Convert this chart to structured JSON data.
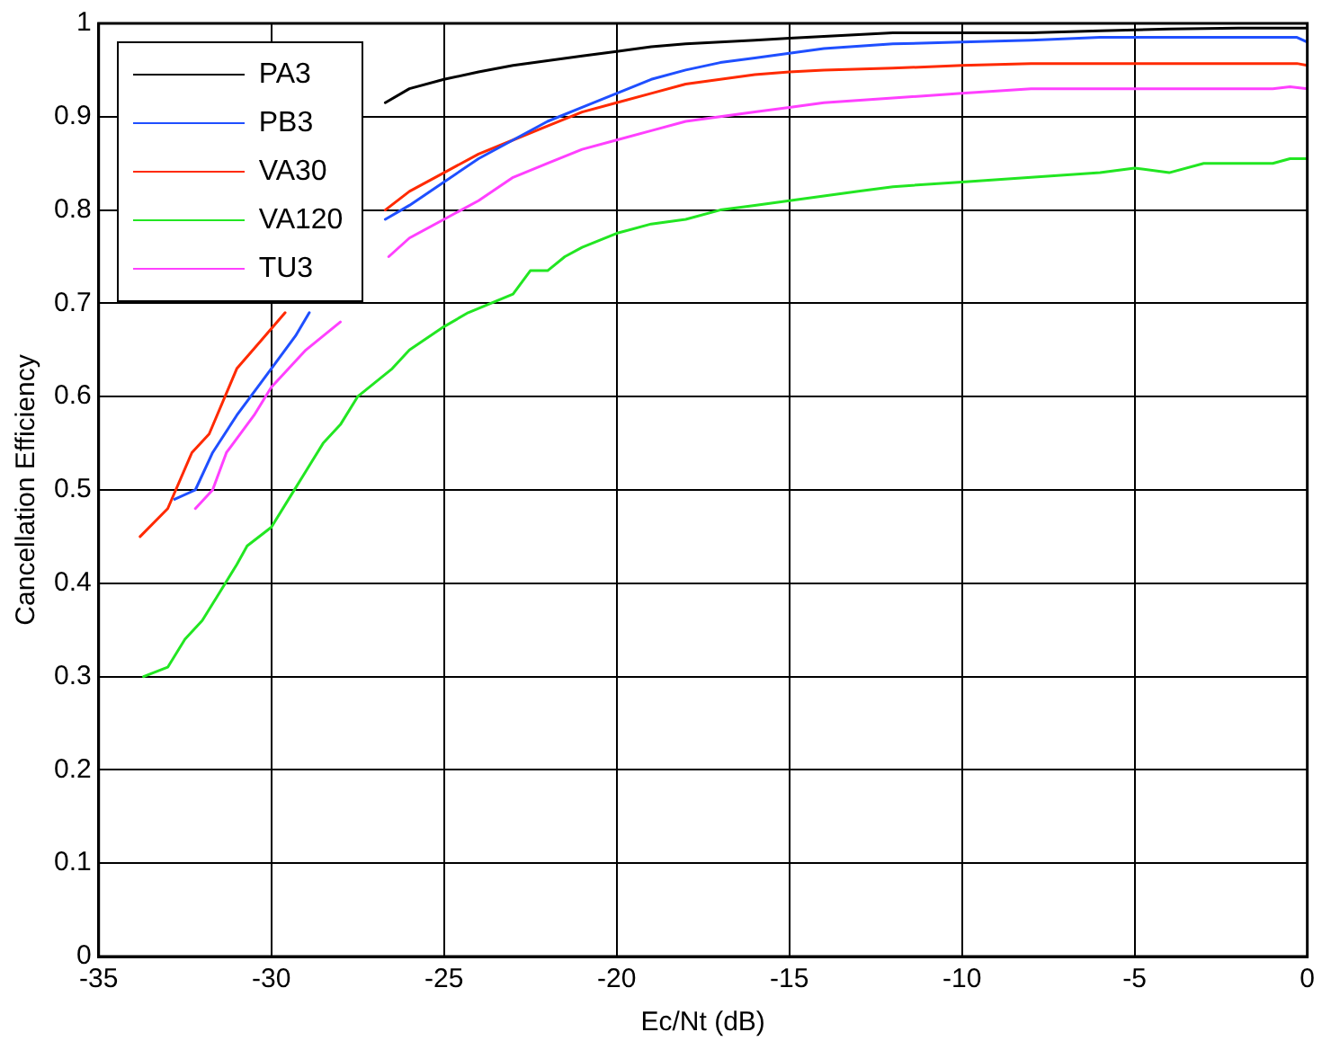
{
  "chart_data": {
    "type": "line",
    "xlabel": "Ec/Nt (dB)",
    "ylabel": "Cancellation Efficiency",
    "xlim": [
      -35,
      0
    ],
    "xticks": [
      -35,
      -30,
      -25,
      -20,
      -15,
      -10,
      -5,
      0
    ],
    "ylim": [
      0,
      1
    ],
    "yticks": [
      0,
      0.1,
      0.2,
      0.3,
      0.4,
      0.5,
      0.6,
      0.7,
      0.8,
      0.9,
      1
    ],
    "grid": true,
    "legend": "top left",
    "marker": "none",
    "line_style": "solid",
    "series": [
      {
        "name": "PA3",
        "color": "#000000",
        "x": [
          -26.7,
          -26,
          -25,
          -24,
          -23,
          -22,
          -21,
          -20,
          -19,
          -18,
          -17,
          -16,
          -15,
          -14,
          -13,
          -12,
          -10,
          -8,
          -6,
          -4,
          -2,
          -0.5,
          0
        ],
        "values": [
          0.915,
          0.93,
          0.94,
          0.948,
          0.955,
          0.96,
          0.965,
          0.97,
          0.975,
          0.978,
          0.98,
          0.982,
          0.984,
          0.986,
          0.988,
          0.99,
          0.99,
          0.99,
          0.992,
          0.994,
          0.995,
          0.995,
          0.995
        ]
      },
      {
        "name": "PB3",
        "color": "#1f4fff",
        "x": [
          -32.8,
          -32.2,
          -31.7,
          -31,
          -30,
          -29.3,
          -28.9,
          -28,
          -26.7,
          -26,
          -25,
          -24,
          -23,
          -22,
          -21,
          -20,
          -19,
          -18,
          -17,
          -16,
          -15,
          -14,
          -12,
          -10,
          -8,
          -6,
          -1,
          -0.3,
          0
        ],
        "values": [
          0.49,
          0.5,
          0.54,
          0.58,
          0.63,
          0.665,
          0.69,
          null,
          0.79,
          0.805,
          0.83,
          0.855,
          0.875,
          0.895,
          0.91,
          0.925,
          0.94,
          0.95,
          0.958,
          0.963,
          0.968,
          0.973,
          0.978,
          0.98,
          0.982,
          0.985,
          0.985,
          0.985,
          0.98
        ]
      },
      {
        "name": "VA30",
        "color": "#ff2a00",
        "x": [
          -33.8,
          -33,
          -32.3,
          -31.8,
          -31,
          -30.3,
          -29.6,
          -28,
          -26.7,
          -26,
          -25,
          -24,
          -23,
          -22,
          -21,
          -20,
          -19,
          -18,
          -17,
          -16,
          -15,
          -14,
          -12,
          -10,
          -8,
          -5,
          -0.3,
          0
        ],
        "values": [
          0.45,
          0.48,
          0.54,
          0.56,
          0.63,
          0.66,
          0.69,
          null,
          0.8,
          0.82,
          0.84,
          0.86,
          0.875,
          0.89,
          0.905,
          0.915,
          0.925,
          0.935,
          0.94,
          0.945,
          0.948,
          0.95,
          0.952,
          0.955,
          0.957,
          0.957,
          0.957,
          0.955
        ]
      },
      {
        "name": "VA120",
        "color": "#22e622",
        "x": [
          -33.7,
          -33,
          -32.5,
          -32,
          -31.5,
          -31,
          -30.7,
          -30,
          -29.5,
          -29,
          -28.5,
          -28,
          -27.5,
          -27,
          -26.5,
          -26,
          -25,
          -24.3,
          -23,
          -22.5,
          -22,
          -21.5,
          -21,
          -20,
          -19,
          -18,
          -17,
          -16,
          -15,
          -14,
          -13,
          -12,
          -10,
          -8,
          -6,
          -5,
          -4,
          -3,
          -1,
          -0.5,
          0
        ],
        "values": [
          0.3,
          0.31,
          0.34,
          0.36,
          0.39,
          0.42,
          0.44,
          0.46,
          0.49,
          0.52,
          0.55,
          0.57,
          0.6,
          0.615,
          0.63,
          0.65,
          0.675,
          0.69,
          0.71,
          0.735,
          0.735,
          0.75,
          0.76,
          0.775,
          0.785,
          0.79,
          0.8,
          0.805,
          0.81,
          0.815,
          0.82,
          0.825,
          0.83,
          0.835,
          0.84,
          0.845,
          0.84,
          0.85,
          0.85,
          0.855,
          0.855
        ]
      },
      {
        "name": "TU3",
        "color": "#ff40ff",
        "x": [
          -32.2,
          -31.7,
          -31.3,
          -30.5,
          -30,
          -29,
          -28,
          -27.5,
          -26.6,
          -26,
          -25,
          -24,
          -23,
          -22,
          -21,
          -20,
          -19,
          -18,
          -17,
          -16,
          -15,
          -14,
          -12,
          -10,
          -8,
          -5,
          -1,
          -0.5,
          0
        ],
        "values": [
          0.48,
          0.5,
          0.54,
          0.58,
          0.61,
          0.65,
          0.68,
          null,
          0.75,
          0.77,
          0.79,
          0.81,
          0.835,
          0.85,
          0.865,
          0.875,
          0.885,
          0.895,
          0.9,
          0.905,
          0.91,
          0.915,
          0.92,
          0.925,
          0.93,
          0.93,
          0.93,
          0.932,
          0.93
        ]
      }
    ]
  }
}
